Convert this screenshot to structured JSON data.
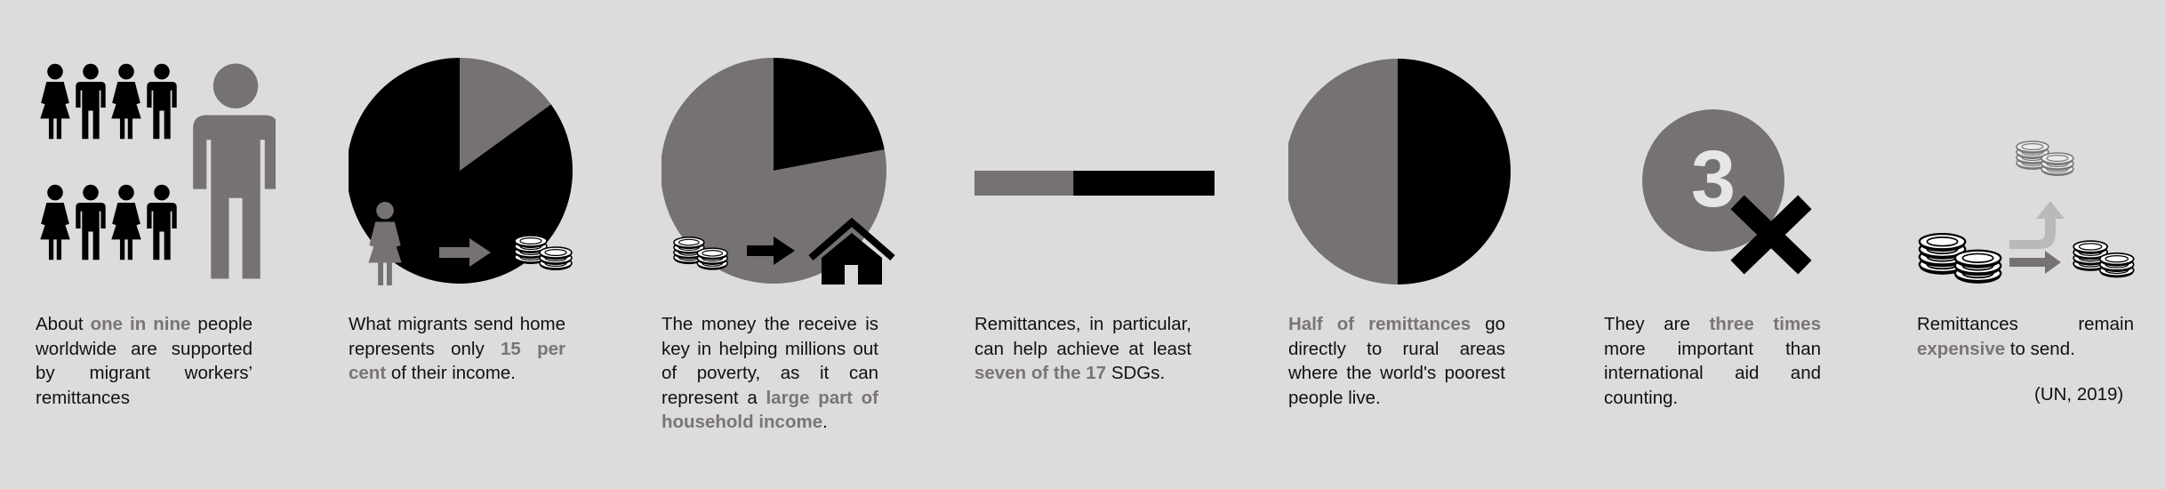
{
  "colors": {
    "background": "#dcdcdc",
    "black": "#000000",
    "grey": "#767271",
    "light_grey": "#b9b9b9",
    "text": "#111111",
    "highlight": "#7a7574"
  },
  "icons": [
    "people-icon",
    "person-icon",
    "woman-icon",
    "arrow-right-icon",
    "coins-icon",
    "house-icon",
    "cross-icon",
    "arrow-up-icon"
  ],
  "panel1": {
    "t1": "About ",
    "h1": "one in nine",
    "t2": " people worldwide are supported by migrant workers’ remittances"
  },
  "panel2": {
    "t1": "What migrants send home represents only ",
    "h1": "15 per cent",
    "t2": " of their income."
  },
  "panel3": {
    "t1": "The money the receive is key in helping millions out of poverty, as it can represent a ",
    "h1": "large part of household income",
    "t2": "."
  },
  "panel4": {
    "t1": "Remittances, in particular, can help achieve at least ",
    "h1": "seven of the 17",
    "t2": " SDGs."
  },
  "panel5": {
    "h1": "Half of remittances",
    "t1": " go directly to rural areas where the world's poorest people live."
  },
  "panel6": {
    "t1": "They are ",
    "h1": "three times",
    "t2": " more important than international aid and counting.",
    "badge": "3"
  },
  "panel7": {
    "t1": "Remittances remain ",
    "h1": "expensive",
    "t2": " to send.",
    "citation": "(UN, 2019)"
  },
  "chart_data": [
    {
      "type": "people-ratio",
      "highlighted": 1,
      "total": 9
    },
    {
      "type": "pie",
      "values": [
        15,
        85
      ]
    },
    {
      "type": "pie",
      "values": [
        22,
        78
      ]
    },
    {
      "type": "bar",
      "values": [
        7,
        10
      ],
      "total": 17
    },
    {
      "type": "pie",
      "values": [
        50,
        50
      ]
    },
    {
      "type": "multiplier",
      "value": 3
    }
  ]
}
